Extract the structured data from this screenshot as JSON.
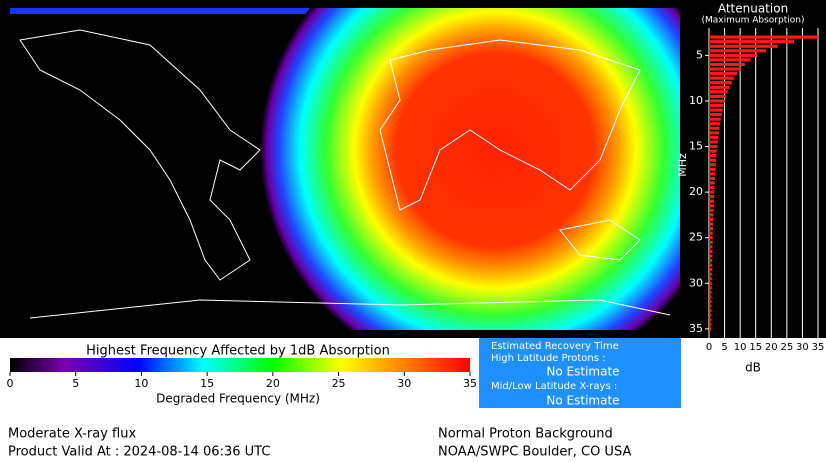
{
  "map": {
    "colorbar": {
      "title": "Highest Frequency Affected by 1dB Absorption",
      "xlabel": "Degraded Frequency (MHz)",
      "xlim": [
        0,
        35
      ],
      "xticks": [
        0,
        5,
        10,
        15,
        20,
        25,
        30,
        35
      ]
    }
  },
  "info": {
    "heading": "Estimated Recovery Time",
    "high_label": "High Latitude Protons :",
    "high_value": "No Estimate",
    "low_label": "Mid/Low Latitude X-rays :",
    "low_value": "No Estimate"
  },
  "footer": {
    "left1": "Moderate X-ray flux",
    "left2": "Product Valid At : 2024-08-14 06:36 UTC",
    "right1": "Normal Proton Background",
    "right2": "NOAA/SWPC Boulder, CO USA"
  },
  "chart_data": {
    "type": "barh",
    "title": "Attenuation",
    "subtitle": "(Maximum Absorption)",
    "ylabel": "MHz",
    "xlabel": "dB",
    "color": "#ff1a1a",
    "y": [
      3,
      3.5,
      4,
      4.5,
      5,
      5.5,
      6,
      6.5,
      7,
      7.5,
      8,
      8.5,
      9,
      9.5,
      10,
      10.5,
      11,
      11.5,
      12,
      12.5,
      13,
      13.5,
      14,
      14.5,
      15,
      15.5,
      16,
      16.5,
      17,
      17.5,
      18,
      18.5,
      19,
      19.5,
      20,
      20.5,
      21,
      21.5,
      22,
      22.5,
      23,
      23.5,
      24,
      24.5,
      25,
      25.5,
      26,
      26.5,
      27,
      27.5,
      28,
      28.5,
      29,
      29.5,
      30,
      30.5,
      31,
      31.5,
      32,
      32.5,
      33,
      33.5,
      34,
      34.5,
      35
    ],
    "values": [
      35,
      27.3,
      22.1,
      18.3,
      15.5,
      13.3,
      11.5,
      10.2,
      9.0,
      8.1,
      7.3,
      6.6,
      6.0,
      5.5,
      5.1,
      4.7,
      4.4,
      4.1,
      3.8,
      3.6,
      3.3,
      3.2,
      3.0,
      2.8,
      2.7,
      2.5,
      2.4,
      2.3,
      2.2,
      2.1,
      2.0,
      1.9,
      1.8,
      1.8,
      1.7,
      1.7,
      1.6,
      1.6,
      1.5,
      1.4,
      1.4,
      1.3,
      1.3,
      1.2,
      1.2,
      1.2,
      1.1,
      1.1,
      1.1,
      1.0,
      1.0,
      1.0,
      0.9,
      0.9,
      0.9,
      0.9,
      0.8,
      0.8,
      0.8,
      0.8,
      0.8,
      0.7,
      0.7,
      0.7,
      0.7
    ],
    "xlim": [
      0,
      35
    ],
    "xticks": [
      0,
      5,
      10,
      15,
      20,
      25,
      30,
      35
    ],
    "ylim": [
      2,
      36
    ],
    "yticks": [
      5,
      10,
      15,
      20,
      25,
      30,
      35
    ],
    "grid": true
  }
}
